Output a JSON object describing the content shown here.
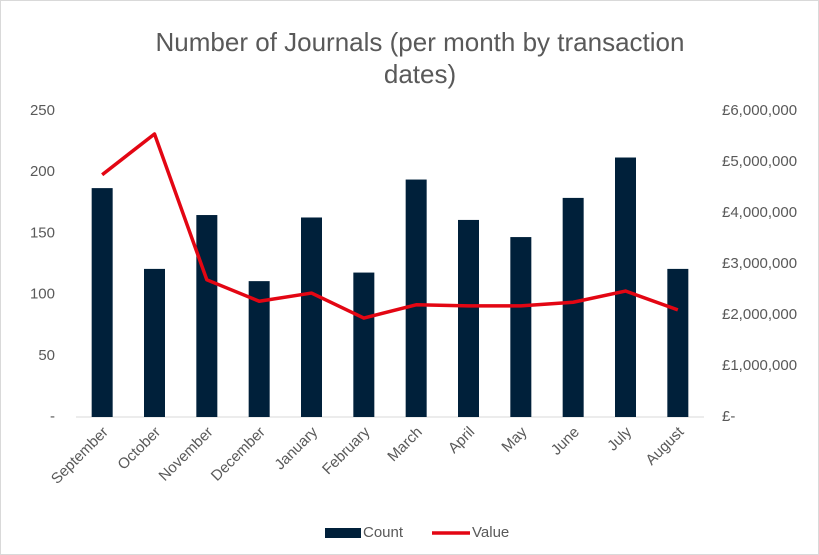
{
  "chart_data": {
    "type": "bar_line",
    "title": "Number of Journals (per month by transaction dates)",
    "categories": [
      "September",
      "October",
      "November",
      "December",
      "January",
      "February",
      "March",
      "April",
      "May",
      "June",
      "July",
      "August"
    ],
    "series": [
      {
        "name": "Count",
        "color": "#00203a",
        "type": "bar",
        "values": [
          187,
          121,
          165,
          111,
          163,
          118,
          194,
          161,
          147,
          179,
          212,
          121
        ]
      },
      {
        "name": "Value",
        "color": "#e30613",
        "type": "line",
        "axis": "y2",
        "values": [
          4750000,
          5550000,
          2690000,
          2270000,
          2430000,
          1940000,
          2200000,
          2180000,
          2180000,
          2250000,
          2470000,
          2100000
        ]
      }
    ],
    "ylim": [
      0,
      250
    ],
    "yticks": [
      {
        "value": 0,
        "label": "-"
      },
      50,
      100,
      150,
      200,
      250
    ],
    "y2lim": [
      0,
      6000000
    ],
    "y2ticks": [
      {
        "value": 0,
        "label": "£-"
      },
      {
        "value": 1000000,
        "label": "£1,000,000"
      },
      {
        "value": 2000000,
        "label": "£2,000,000"
      },
      {
        "value": 3000000,
        "label": "£3,000,000"
      },
      {
        "value": 4000000,
        "label": "£4,000,000"
      },
      {
        "value": 5000000,
        "label": "£5,000,000"
      },
      {
        "value": 6000000,
        "label": "£6,000,000"
      }
    ],
    "grid": false,
    "legend": "bottom"
  }
}
